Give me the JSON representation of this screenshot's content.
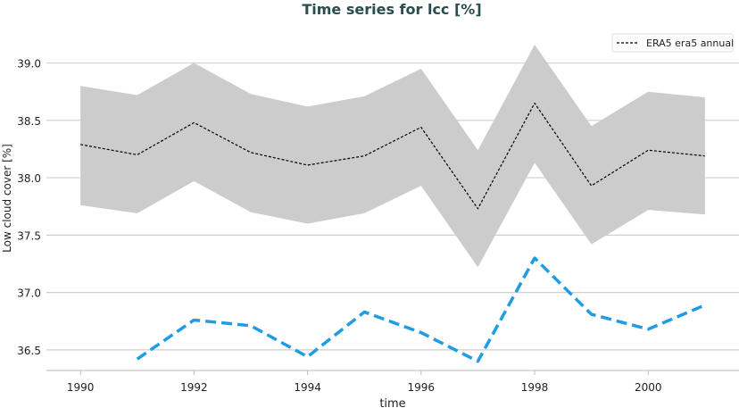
{
  "chart_data": {
    "type": "line",
    "title": "Time series for lcc [%]",
    "xlabel": "time",
    "ylabel": "Low cloud cover [%]",
    "xlim": [
      1989.4,
      2001.6
    ],
    "ylim": [
      36.32,
      39.3
    ],
    "x_ticks": [
      "1990",
      "1992",
      "1994",
      "1996",
      "1998",
      "2000"
    ],
    "y_ticks": [
      "36.5",
      "37.0",
      "37.5",
      "38.0",
      "38.5",
      "39.0"
    ],
    "grid": "horizontal",
    "legend_position": "top-right",
    "x": [
      1990,
      1991,
      1992,
      1993,
      1994,
      1995,
      1996,
      1997,
      1998,
      1999,
      2000,
      2001
    ],
    "series": [
      {
        "name": "ERA5 era5 annual",
        "color": "#000000",
        "style": "dashed",
        "values": [
          38.29,
          38.2,
          38.48,
          38.22,
          38.11,
          38.19,
          38.44,
          37.73,
          38.65,
          37.93,
          38.24,
          38.19
        ],
        "band_upper": [
          38.8,
          38.72,
          39.0,
          38.73,
          38.62,
          38.71,
          38.95,
          38.24,
          39.16,
          38.45,
          38.75,
          38.7
        ],
        "band_lower": [
          37.76,
          37.69,
          37.97,
          37.7,
          37.6,
          37.69,
          37.93,
          37.22,
          38.13,
          37.42,
          37.72,
          37.68
        ],
        "band_color": "#cccccc"
      },
      {
        "color": "#1f9ce4",
        "style": "dashed",
        "values": [
          null,
          36.42,
          36.76,
          36.71,
          36.44,
          36.83,
          36.65,
          36.4,
          37.3,
          36.81,
          36.68,
          36.89
        ]
      }
    ],
    "title_color": "#2a4d4f"
  }
}
